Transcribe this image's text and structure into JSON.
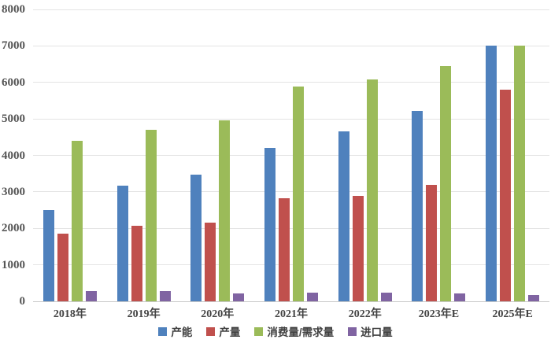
{
  "chart_data": {
    "type": "bar",
    "title": "",
    "categories": [
      "2018年",
      "2019年",
      "2020年",
      "2021年",
      "2022年",
      "2023年E",
      "2025年E"
    ],
    "series": [
      {
        "name": "产能",
        "color": "#4F81BD",
        "values": [
          2500,
          3180,
          3470,
          4200,
          4660,
          5220,
          7000
        ]
      },
      {
        "name": "产量",
        "color": "#C0504D",
        "values": [
          1850,
          2060,
          2150,
          2820,
          2900,
          3200,
          5800
        ]
      },
      {
        "name": "消费量/需求量",
        "color": "#9BBB59",
        "values": [
          4400,
          4700,
          4950,
          5890,
          6090,
          6440,
          7000
        ]
      },
      {
        "name": "进口量",
        "color": "#8064A2",
        "values": [
          280,
          270,
          210,
          240,
          230,
          215,
          170
        ]
      }
    ],
    "xlabel": "",
    "ylabel": "",
    "ylim": [
      0,
      8000
    ],
    "yticks": [
      0,
      1000,
      2000,
      3000,
      4000,
      5000,
      6000,
      7000,
      8000
    ],
    "grid": true,
    "legend_position": "bottom"
  },
  "style": {
    "background": "#ffffff",
    "gridline_color": "#e4e4e4",
    "axis_line_color": "#c9c9c9",
    "tick_label_color": "#555555",
    "category_label_color": "#434343",
    "legend_text_color": "#404040"
  }
}
